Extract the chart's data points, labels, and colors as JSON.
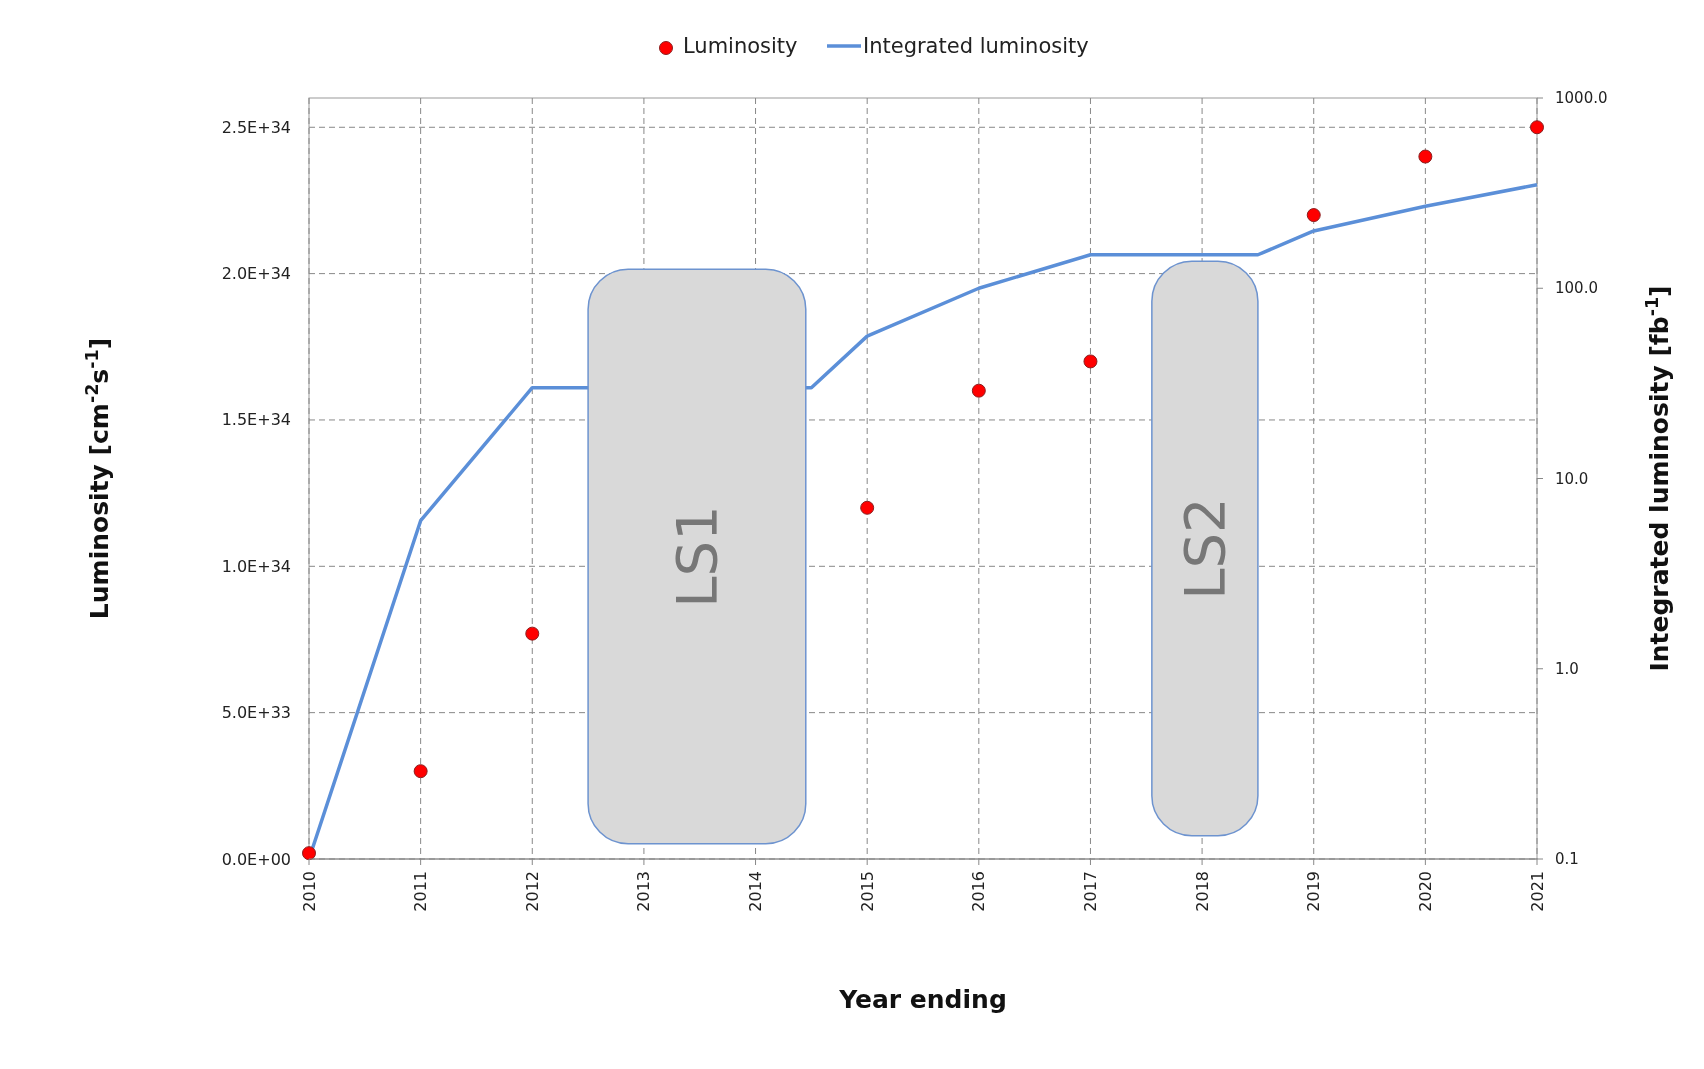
{
  "chart_data": {
    "type": "scatter",
    "xlabel": "Year ending",
    "ylabel": "Luminosity [cm$^{-2}$s$^{-1}$]",
    "y2label": "Integrated luminosity [fb$^{-1}$]",
    "xlim": [
      2010,
      2021
    ],
    "xticks": [
      2010,
      2011,
      2012,
      2013,
      2014,
      2015,
      2016,
      2017,
      2018,
      2019,
      2020,
      2021
    ],
    "ylim": [
      0,
      2.6e+34
    ],
    "yticks": [
      {
        "value": 0,
        "label": "0.0E+00"
      },
      {
        "value": 5e+33,
        "label": "5.0E+33"
      },
      {
        "value": 1e+34,
        "label": "1.0E+34"
      },
      {
        "value": 1.5e+34,
        "label": "1.5E+34"
      },
      {
        "value": 2e+34,
        "label": "2.0E+34"
      },
      {
        "value": 2.5e+34,
        "label": "2.5E+34"
      }
    ],
    "y2lim": [
      0.1,
      1000
    ],
    "y2ticks": [
      {
        "value": 0.1,
        "label": "0.1"
      },
      {
        "value": 1,
        "label": "1.0"
      },
      {
        "value": 10,
        "label": "10.0"
      },
      {
        "value": 100,
        "label": "100.0"
      },
      {
        "value": 1000,
        "label": "1000.0"
      }
    ],
    "log": "y2",
    "grid": true,
    "legend": "top",
    "series": [
      {
        "name": "Luminosity",
        "marker": "circle",
        "color": "#ff0000",
        "x": [
          2010,
          2011,
          2012,
          2015,
          2016,
          2017,
          2019,
          2020,
          2021
        ],
        "values": [
          2e+32,
          3e+33,
          7.7e+33,
          1.2e+34,
          1.6e+34,
          1.7e+34,
          2.2e+34,
          2.4e+34,
          2.5e+34
        ]
      },
      {
        "name": "Integrated luminosity",
        "type": "line",
        "axis": "y2",
        "color": "#5b8fd8",
        "line_style": "solid",
        "x": [
          2010,
          2011,
          2012,
          2014.5,
          2015,
          2016,
          2017,
          2018.5,
          2019,
          2020,
          2021
        ],
        "values": [
          0.1,
          6,
          30,
          30,
          56,
          100,
          150,
          150,
          200,
          270,
          350
        ]
      }
    ],
    "bands": [
      {
        "axis": "x",
        "from": 2012.5,
        "to": 2014.45,
        "label": "LS1",
        "color": "#d9d9d9"
      },
      {
        "axis": "x",
        "from": 2017.55,
        "to": 2018.5,
        "label": "LS2",
        "color": "#d9d9d9"
      }
    ]
  }
}
